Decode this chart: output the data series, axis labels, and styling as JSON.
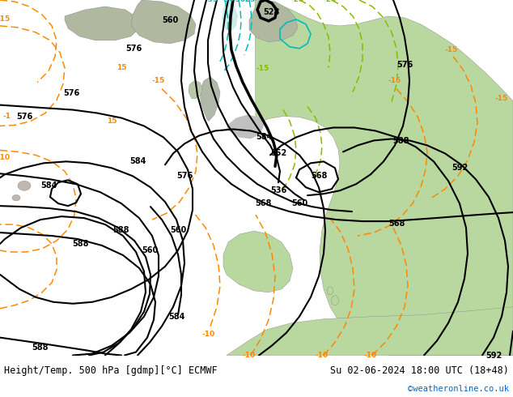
{
  "title_left": "Height/Temp. 500 hPa [gdmp][°C] ECMWF",
  "title_right": "Su 02-06-2024 18:00 UTC (18+48)",
  "credit": "©weatheronline.co.uk",
  "bg_color": "#d8d8d8",
  "land_green": "#b8d8a0",
  "land_green2": "#c8e0b0",
  "figsize": [
    6.34,
    4.9
  ],
  "dpi": 100
}
